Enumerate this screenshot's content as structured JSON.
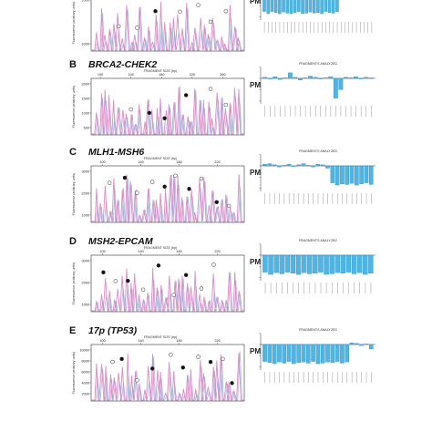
{
  "panels": [
    {
      "letter": "",
      "title": "",
      "x_ticks": [],
      "y_ticks": [
        "2000",
        "1000"
      ],
      "seed": 11,
      "pm_values": [
        -30,
        -34,
        -30,
        -32,
        -34,
        -31,
        -33,
        -34,
        -32,
        -30,
        -34,
        -33,
        -31,
        -33,
        -32,
        -34,
        -30,
        -32,
        -33,
        -30,
        2,
        1,
        3,
        -2,
        4,
        2,
        1,
        3,
        2
      ],
      "dots": [
        {
          "f": 0.42,
          "filled": true
        },
        {
          "f": 0.18,
          "filled": false
        },
        {
          "f": 0.3,
          "filled": false
        },
        {
          "f": 0.58,
          "filled": false
        },
        {
          "f": 0.7,
          "filled": false
        },
        {
          "f": 0.78,
          "filled": false
        },
        {
          "f": 0.88,
          "filled": false
        }
      ]
    },
    {
      "letter": "B",
      "title": "BRCA2-CHEK2",
      "x_ticks": [
        "100",
        "140",
        "180",
        "220",
        "260"
      ],
      "y_ticks": [
        "2000",
        "1500",
        "1000",
        "500"
      ],
      "seed": 23,
      "pm_values": [
        2,
        -1,
        3,
        -2,
        1,
        10,
        2,
        -3,
        1,
        4,
        2,
        -1,
        1,
        3,
        -35,
        -20,
        2,
        1,
        3,
        -1,
        2,
        1
      ],
      "dots": [
        {
          "f": 0.62,
          "filled": true
        },
        {
          "f": 0.38,
          "filled": true
        },
        {
          "f": 0.48,
          "filled": true
        },
        {
          "f": 0.26,
          "filled": false
        },
        {
          "f": 0.78,
          "filled": false
        },
        {
          "f": 0.88,
          "filled": false
        }
      ]
    },
    {
      "letter": "C",
      "title": "MLH1-MSH6",
      "x_ticks": [
        "100",
        "140",
        "180",
        "220"
      ],
      "y_ticks": [
        "3000",
        "2000",
        "1000"
      ],
      "seed": 37,
      "pm_values": [
        3,
        4,
        2,
        -2,
        1,
        3,
        -1,
        2,
        4,
        1,
        -2,
        3,
        2,
        -4,
        -30,
        -34,
        -32,
        -33,
        -31,
        -34,
        -32,
        -30,
        -33
      ],
      "dots": [
        {
          "f": 0.12,
          "filled": false
        },
        {
          "f": 0.22,
          "filled": true
        },
        {
          "f": 0.3,
          "filled": false
        },
        {
          "f": 0.4,
          "filled": false
        },
        {
          "f": 0.48,
          "filled": true
        },
        {
          "f": 0.55,
          "filled": false
        },
        {
          "f": 0.64,
          "filled": true
        },
        {
          "f": 0.72,
          "filled": false
        },
        {
          "f": 0.82,
          "filled": true
        },
        {
          "f": 0.9,
          "filled": false
        }
      ]
    },
    {
      "letter": "D",
      "title": "MSH2-EPCAM",
      "x_ticks": [
        "100",
        "140",
        "180",
        "220"
      ],
      "y_ticks": [
        "3000",
        "2000",
        "1000"
      ],
      "seed": 53,
      "pm_values": [
        -30,
        -34,
        -31,
        -33,
        -30,
        -32,
        -34,
        -31,
        -33,
        -32,
        -30,
        -34,
        -33,
        -31,
        -32,
        -30,
        -33,
        -31,
        -34,
        -32
      ],
      "dots": [
        {
          "f": 0.08,
          "filled": true
        },
        {
          "f": 0.16,
          "filled": false
        },
        {
          "f": 0.24,
          "filled": true
        },
        {
          "f": 0.34,
          "filled": false
        },
        {
          "f": 0.44,
          "filled": true
        },
        {
          "f": 0.54,
          "filled": false
        },
        {
          "f": 0.62,
          "filled": true
        },
        {
          "f": 0.72,
          "filled": false
        },
        {
          "f": 0.8,
          "filled": false
        }
      ]
    },
    {
      "letter": "E",
      "title": "17p (TP53)",
      "x_ticks": [
        "100",
        "140",
        "180",
        "220"
      ],
      "y_ticks": [
        "10000",
        "8000",
        "6000",
        "4000",
        "2000"
      ],
      "seed": 71,
      "pm_values": [
        -30,
        -32,
        -34,
        -31,
        -33,
        -30,
        -34,
        -32,
        -31,
        -33,
        -30,
        -34,
        -33,
        -31,
        -32,
        -30,
        -33,
        -31,
        3,
        2,
        -2,
        1,
        -8
      ],
      "dots": [
        {
          "f": 0.14,
          "filled": false
        },
        {
          "f": 0.2,
          "filled": true
        },
        {
          "f": 0.3,
          "filled": false
        },
        {
          "f": 0.4,
          "filled": true
        },
        {
          "f": 0.52,
          "filled": false
        },
        {
          "f": 0.6,
          "filled": true
        },
        {
          "f": 0.7,
          "filled": false
        },
        {
          "f": 0.78,
          "filled": true
        },
        {
          "f": 0.86,
          "filled": false
        },
        {
          "f": 0.92,
          "filled": true
        }
      ]
    }
  ],
  "labels": {
    "fragment_size": "FRAGMENT SIZE (bp)",
    "fluorescence": "Fluorescence (arbitrary units)",
    "fragments_analyzed": "FRAGMENTS ANALYZED",
    "pm": "PM"
  },
  "colors": {
    "peak_pink": "#d98cc6",
    "peak_blue": "#9fb4e0",
    "bar_blue": "#4fb6e3",
    "bar_edge": "#1e6f9e",
    "axis": "#333333"
  }
}
